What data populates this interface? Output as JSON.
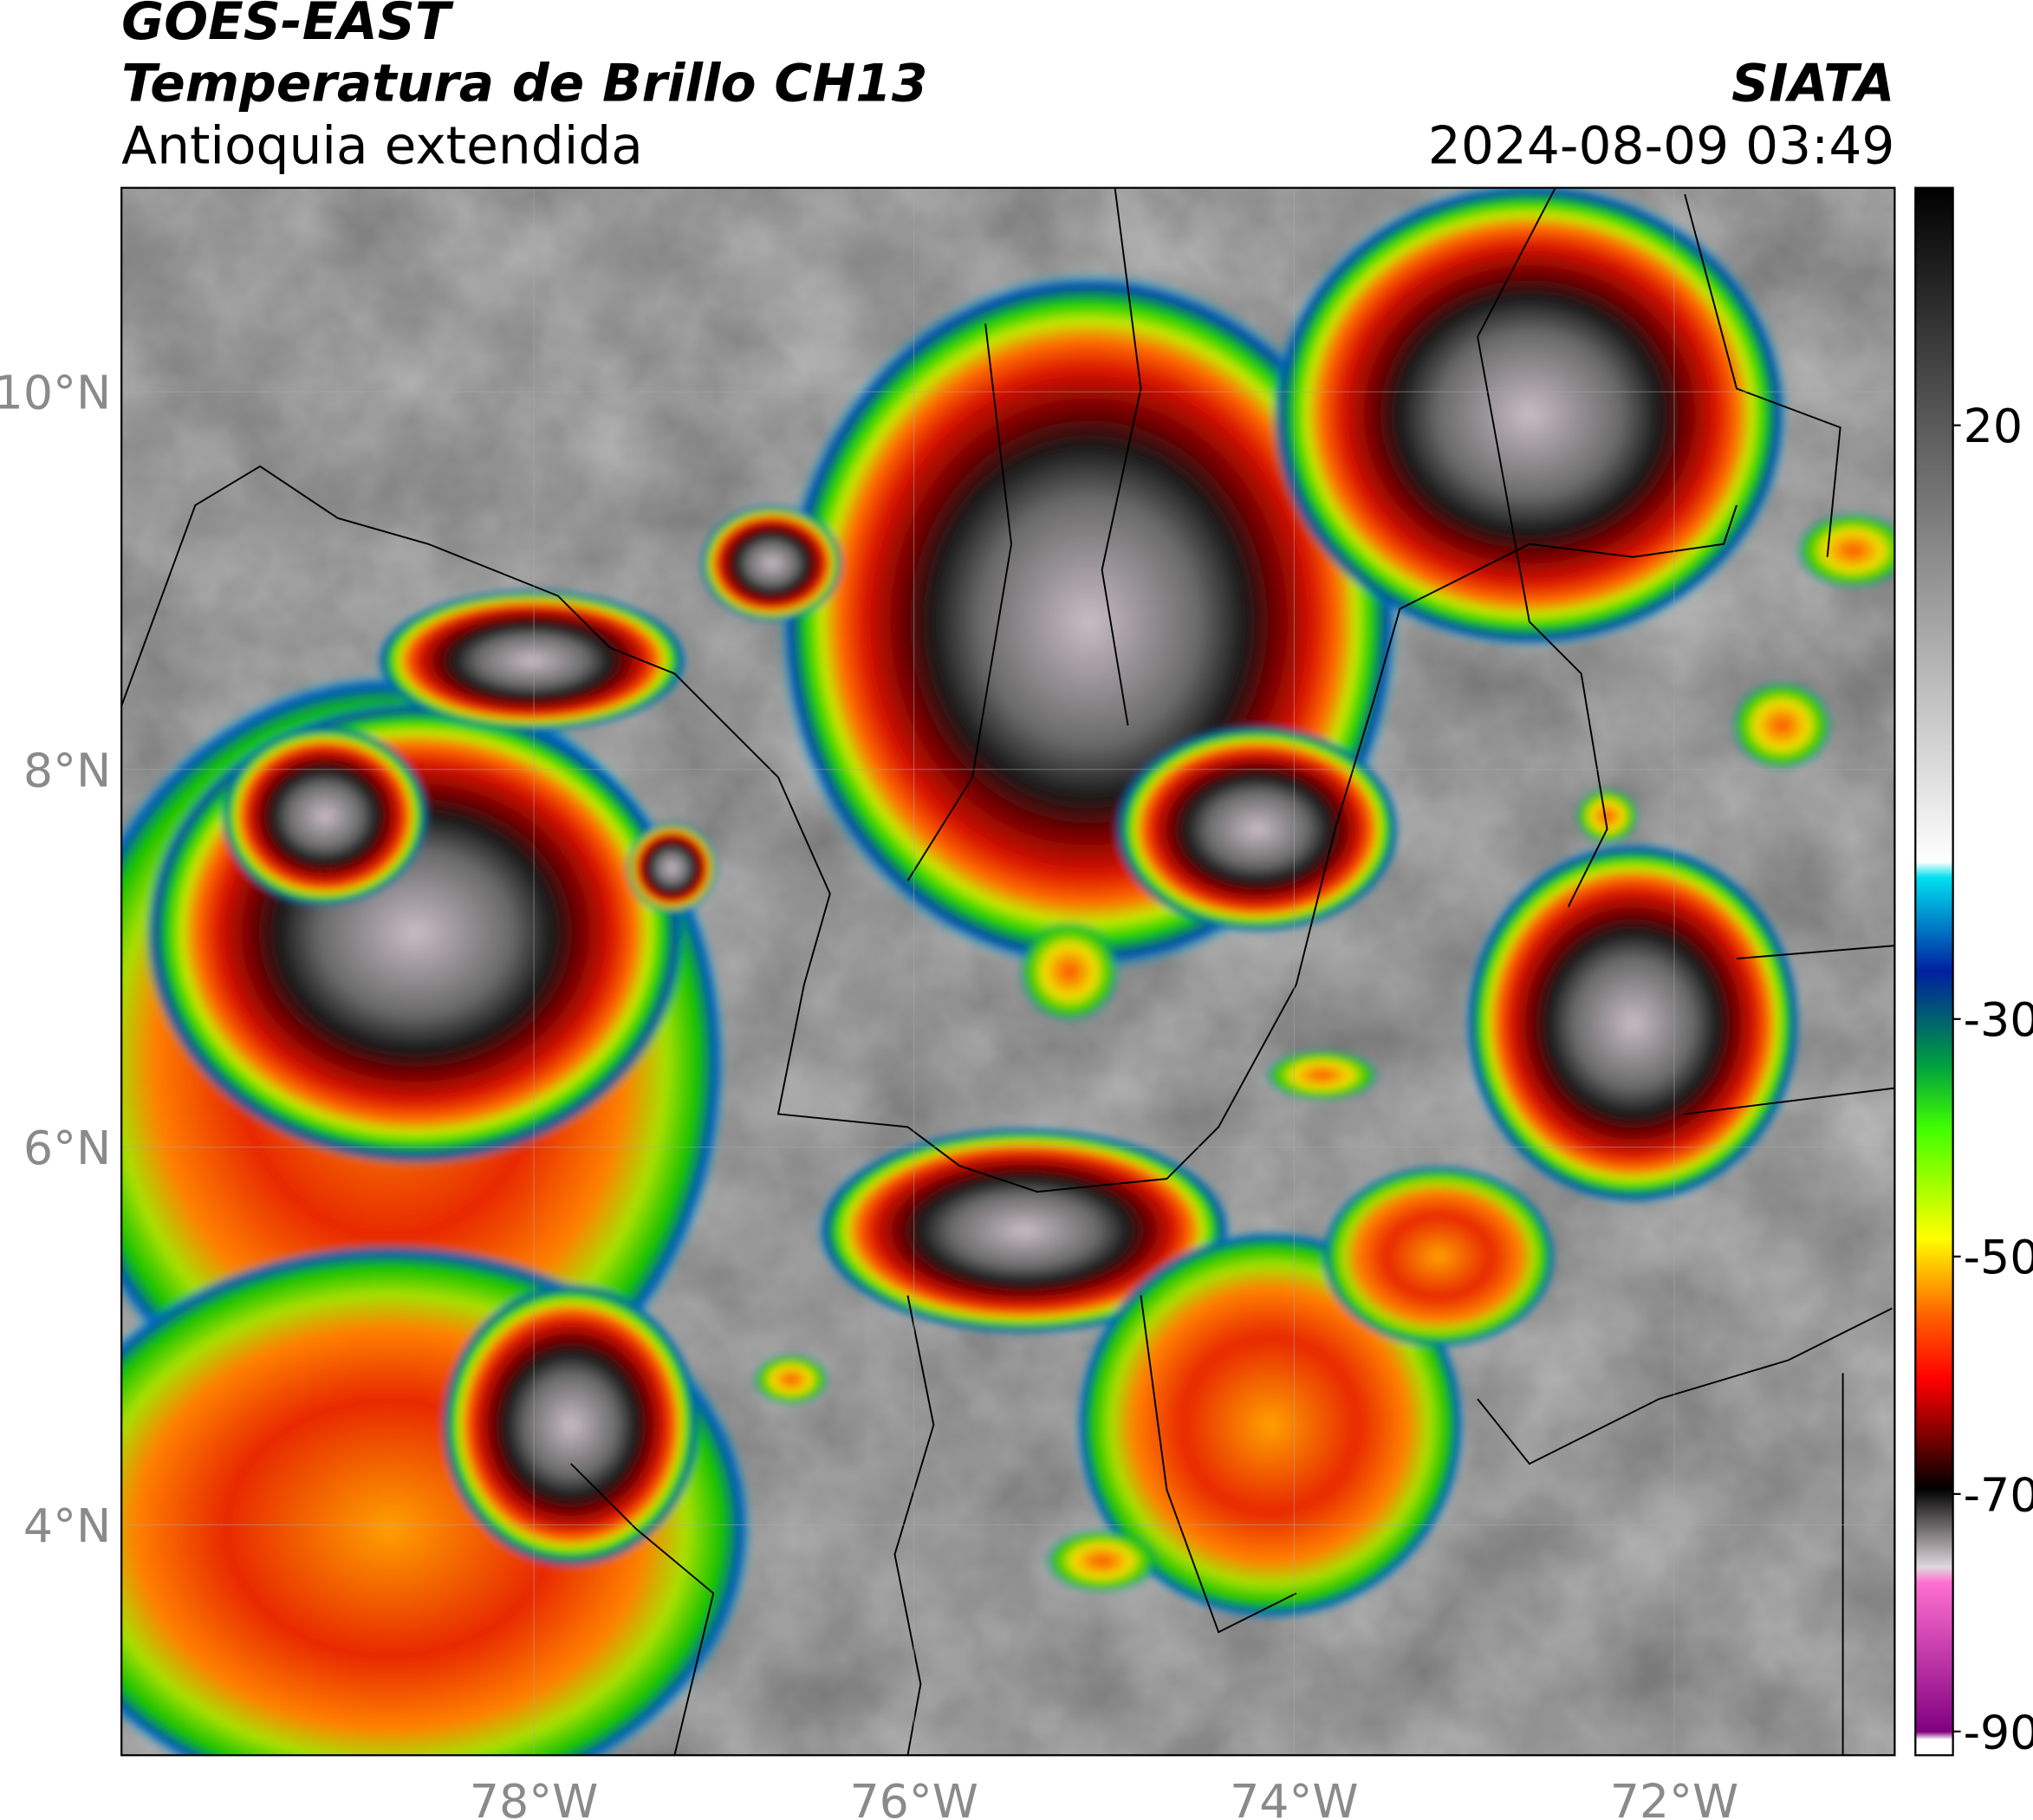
{
  "header": {
    "satellite": "GOES-EAST",
    "product": "Temperatura de Brillo CH13",
    "region": "Antioquia extendida",
    "source": "SIATA",
    "datetime": "2024-08-09 03:49"
  },
  "map": {
    "xlim": [
      -80.17,
      -70.84
    ],
    "ylim": [
      2.78,
      11.08
    ],
    "xticks": [
      {
        "value": -78,
        "label": "78°W"
      },
      {
        "value": -76,
        "label": "76°W"
      },
      {
        "value": -74,
        "label": "74°W"
      },
      {
        "value": -72,
        "label": "72°W"
      }
    ],
    "yticks": [
      {
        "value": 10,
        "label": "10°N"
      },
      {
        "value": 8,
        "label": "8°N"
      },
      {
        "value": 6,
        "label": "6°N"
      },
      {
        "value": 4,
        "label": "4°N"
      }
    ]
  },
  "colorbar": {
    "lim": [
      -92,
      40
    ],
    "ticks": [
      20,
      -30,
      -50,
      -70,
      -90
    ]
  }
}
